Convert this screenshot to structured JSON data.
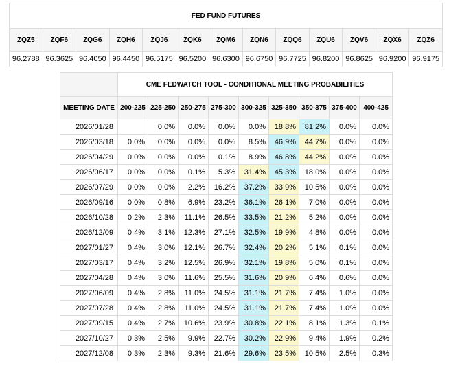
{
  "futures": {
    "title": "FED FUND FUTURES",
    "headers": [
      "ZQZ5",
      "ZQF6",
      "ZQG6",
      "ZQH6",
      "ZQJ6",
      "ZQK6",
      "ZQM6",
      "ZQN6",
      "ZQQ6",
      "ZQU6",
      "ZQV6",
      "ZQX6",
      "ZQZ6"
    ],
    "values": [
      "96.2788",
      "96.3625",
      "96.4050",
      "96.4450",
      "96.5175",
      "96.5200",
      "96.6300",
      "96.6750",
      "96.7725",
      "96.8200",
      "96.8625",
      "96.9200",
      "96.9175"
    ]
  },
  "fedwatch": {
    "title": "CME FEDWATCH TOOL - CONDITIONAL MEETING PROBABILITIES",
    "date_header": "MEETING DATE",
    "ranges": [
      "200-225",
      "225-250",
      "250-275",
      "275-300",
      "300-325",
      "325-350",
      "350-375",
      "375-400",
      "400-425"
    ],
    "highlight_colors": {
      "max": "#c9f1f8",
      "second": "#fbf8cf"
    },
    "rows": [
      {
        "date": "2026/01/28",
        "values": [
          "",
          "0.0%",
          "0.0%",
          "0.0%",
          "0.0%",
          "18.8%",
          "81.2%",
          "0.0%",
          "0.0%"
        ],
        "max": 6,
        "second": 5
      },
      {
        "date": "2026/03/18",
        "values": [
          "0.0%",
          "0.0%",
          "0.0%",
          "0.0%",
          "8.5%",
          "46.9%",
          "44.7%",
          "0.0%",
          "0.0%"
        ],
        "max": 5,
        "second": 6
      },
      {
        "date": "2026/04/29",
        "values": [
          "0.0%",
          "0.0%",
          "0.0%",
          "0.1%",
          "8.9%",
          "46.8%",
          "44.2%",
          "0.0%",
          "0.0%"
        ],
        "max": 5,
        "second": 6
      },
      {
        "date": "2026/06/17",
        "values": [
          "0.0%",
          "0.0%",
          "0.1%",
          "5.3%",
          "31.4%",
          "45.3%",
          "18.0%",
          "0.0%",
          "0.0%"
        ],
        "max": 5,
        "second": 4
      },
      {
        "date": "2026/07/29",
        "values": [
          "0.0%",
          "0.0%",
          "2.2%",
          "16.2%",
          "37.2%",
          "33.9%",
          "10.5%",
          "0.0%",
          "0.0%"
        ],
        "max": 4,
        "second": 5
      },
      {
        "date": "2026/09/16",
        "values": [
          "0.0%",
          "0.8%",
          "6.9%",
          "23.2%",
          "36.1%",
          "26.1%",
          "7.0%",
          "0.0%",
          "0.0%"
        ],
        "max": 4,
        "second": 5
      },
      {
        "date": "2026/10/28",
        "values": [
          "0.2%",
          "2.3%",
          "11.1%",
          "26.5%",
          "33.5%",
          "21.2%",
          "5.2%",
          "0.0%",
          "0.0%"
        ],
        "max": 4,
        "second": 5
      },
      {
        "date": "2026/12/09",
        "values": [
          "0.4%",
          "3.1%",
          "12.3%",
          "27.1%",
          "32.5%",
          "19.9%",
          "4.8%",
          "0.0%",
          "0.0%"
        ],
        "max": 4,
        "second": 5
      },
      {
        "date": "2027/01/27",
        "values": [
          "0.4%",
          "3.0%",
          "12.1%",
          "26.7%",
          "32.4%",
          "20.2%",
          "5.1%",
          "0.1%",
          "0.0%"
        ],
        "max": 4,
        "second": 5
      },
      {
        "date": "2027/03/17",
        "values": [
          "0.4%",
          "3.2%",
          "12.5%",
          "26.9%",
          "32.1%",
          "19.8%",
          "5.0%",
          "0.1%",
          "0.0%"
        ],
        "max": 4,
        "second": 5
      },
      {
        "date": "2027/04/28",
        "values": [
          "0.4%",
          "3.0%",
          "11.6%",
          "25.5%",
          "31.6%",
          "20.9%",
          "6.4%",
          "0.6%",
          "0.0%"
        ],
        "max": 4,
        "second": 5
      },
      {
        "date": "2027/06/09",
        "values": [
          "0.4%",
          "2.8%",
          "11.0%",
          "24.5%",
          "31.1%",
          "21.7%",
          "7.4%",
          "1.0%",
          "0.0%"
        ],
        "max": 4,
        "second": 5
      },
      {
        "date": "2027/07/28",
        "values": [
          "0.4%",
          "2.8%",
          "11.0%",
          "24.5%",
          "31.1%",
          "21.7%",
          "7.4%",
          "1.0%",
          "0.0%"
        ],
        "max": 4,
        "second": 5
      },
      {
        "date": "2027/09/15",
        "values": [
          "0.4%",
          "2.7%",
          "10.6%",
          "23.9%",
          "30.8%",
          "22.1%",
          "8.1%",
          "1.3%",
          "0.1%"
        ],
        "max": 4,
        "second": 5
      },
      {
        "date": "2027/10/27",
        "values": [
          "0.3%",
          "2.5%",
          "9.9%",
          "22.7%",
          "30.2%",
          "22.9%",
          "9.4%",
          "1.9%",
          "0.2%"
        ],
        "max": 4,
        "second": 5
      },
      {
        "date": "2027/12/08",
        "values": [
          "0.3%",
          "2.3%",
          "9.3%",
          "21.6%",
          "29.6%",
          "23.5%",
          "10.5%",
          "2.5%",
          "0.3%"
        ],
        "max": 4,
        "second": 5
      }
    ]
  }
}
